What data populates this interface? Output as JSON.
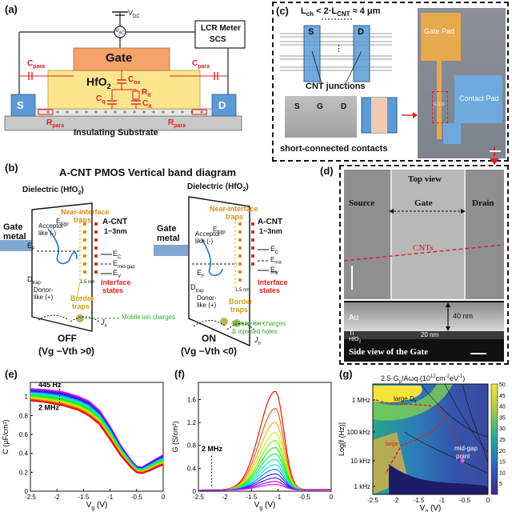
{
  "panel_labels": [
    "(a)",
    "(b)",
    "(c)",
    "(d)",
    "(e)",
    "(f)",
    "(g)"
  ],
  "panel_a": {
    "vdc": "V",
    "vdc_sub": "DC",
    "vac": "V",
    "vac_sub": "AC",
    "lcr_line1": "LCR Meter",
    "lcr_line2": "SCS",
    "gate": "Gate",
    "hfo2": "HfO",
    "hfo2_sub": "2",
    "cpara": "C",
    "cpara_sub": "para",
    "cox": "C",
    "cox_sub": "ox",
    "rit": "R",
    "rit_sub": "it",
    "cit": "C",
    "cit_sub": "it",
    "cq": "C",
    "cq_sub": "q",
    "rpara": "R",
    "rpara_sub": "para",
    "source": "S",
    "drain": "D",
    "substrate": "Insulating Substrate"
  },
  "panel_b": {
    "title": "A-CNT PMOS Vertical band diagram",
    "dielectric": "Dielectric (HfO",
    "dielectric_end": ")",
    "sub2": "2",
    "gate_metal_1": "Gate",
    "gate_metal_2": "metal",
    "acnt": "A-CNT",
    "acnt_size": "1~3nm",
    "near_interface_1": "Near-Interface",
    "near_interface_2": "traps",
    "acceptor_1": "Acceptor-",
    "acceptor_2": "like (-)",
    "donor_1": "Donor-",
    "donor_2": "like (+)",
    "etrap": "E",
    "etrap_sub": "trap",
    "ef": "E",
    "ef_sub": "F",
    "ec": "E",
    "ec_sub": "C",
    "emid": "E",
    "emid_sub": "mid-gap",
    "ev": "E",
    "ev_sub": "V",
    "dtrap": "D",
    "dtrap_sub": "trap",
    "interface_1": "Interface",
    "interface_2": "states",
    "border_1": "Border",
    "border_2": "traps",
    "mobile_off": "Mobile ion charges",
    "mobile_on_1": "Mobile ion charges",
    "mobile_on_2": "& injected holes",
    "jh": "J",
    "jh_sub": "h",
    "off_label": "OFF",
    "off_cond": "(V",
    "off_cond_full": "(Vg −Vth >0)",
    "on_label": "ON",
    "on_cond_full": "(Vg −Vth <0)",
    "size_mark": "1.5 nm"
  },
  "panel_c": {
    "lch_eq": "L",
    "lch_sub": "ch",
    "lch_rest": " < 2·L",
    "lcnt_sub": "CNT",
    "lcnt_rest": " ≈ 4 μm",
    "s": "S",
    "d": "D",
    "g": "G",
    "dots": "⋮",
    "cnt_junctions": "CNT junctions",
    "short_contacts": "short-connected contacts",
    "gate_pad": "Gate Pad",
    "contact_pad": "Contact Pad",
    "mini_letters": "G S D"
  },
  "panel_d": {
    "top_view": "Top view",
    "source": "Source",
    "gate": "Gate",
    "drain": "Drain",
    "cnts": "CNTs",
    "au": "Au",
    "ti": "Ti",
    "hfo2": "HfO",
    "hfo2_sub": "2",
    "thick_40": "40 nm",
    "thick_20": "20 nm",
    "side_view": "Side view of the Gate"
  },
  "chart_data": [
    {
      "type": "line",
      "panel": "(e)",
      "xlabel": "V",
      "xlabel_sub": "g",
      "xlabel_unit": " (V)",
      "ylabel": "C (μF/cm²)",
      "xlim": [
        -2.5,
        0
      ],
      "ylim": [
        0,
        1.15
      ],
      "xticks": [
        "-2.5",
        "-2",
        "-1.5",
        "-1",
        "-0.5",
        "0"
      ],
      "yticks": [
        "0",
        "0.2",
        "0.4",
        "0.6",
        "0.8",
        "1"
      ],
      "annotations": [
        "445 Hz",
        "2 MHz"
      ],
      "series_top": {
        "x": [
          -2.5,
          -2.2,
          -1.9,
          -1.6,
          -1.4,
          -1.2,
          -1.0,
          -0.8,
          -0.6,
          -0.5,
          -0.4,
          -0.25,
          -0.1,
          0
        ],
        "y": [
          1.08,
          1.07,
          1.05,
          1.0,
          0.95,
          0.85,
          0.68,
          0.48,
          0.32,
          0.26,
          0.25,
          0.3,
          0.35,
          0.38
        ]
      },
      "series_bottom": {
        "x": [
          -2.5,
          -2.2,
          -1.9,
          -1.6,
          -1.4,
          -1.2,
          -1.0,
          -0.8,
          -0.6,
          -0.5,
          -0.4,
          -0.25,
          -0.1,
          0
        ],
        "y": [
          0.96,
          0.94,
          0.91,
          0.86,
          0.8,
          0.71,
          0.55,
          0.38,
          0.25,
          0.2,
          0.19,
          0.22,
          0.26,
          0.28
        ]
      },
      "n_series": 14
    },
    {
      "type": "line",
      "panel": "(f)",
      "xlabel": "V",
      "xlabel_sub": "g",
      "xlabel_unit": " (V)",
      "ylabel": "G (S/cm²)",
      "xlim": [
        -2.5,
        0
      ],
      "ylim": [
        0,
        1.9
      ],
      "xticks": [
        "-2.5",
        "-2",
        "-1.5",
        "-1",
        "-0.5",
        "0"
      ],
      "yticks": [
        "0",
        "0.4",
        "0.8",
        "1.2",
        "1.6"
      ],
      "annotations": [
        "2 MHz"
      ],
      "peak_x": -1.05,
      "peak_values": [
        1.72,
        1.42,
        1.18,
        1.0,
        0.86,
        0.74,
        0.63,
        0.53,
        0.44,
        0.36,
        0.28,
        0.21,
        0.15,
        0.1
      ]
    },
    {
      "type": "heatmap",
      "panel": "(g)",
      "title": "2.5·G",
      "title_sub": "p",
      "title_rest": "/Aωq (10",
      "title_sup1": "12",
      "title_mid": "cm",
      "title_sup2": "-2",
      "title_end": "eV",
      "title_sup3": "-1",
      "title_close": ")",
      "xlabel": "V",
      "xlabel_sub": "g",
      "xlabel_unit": " (V)",
      "ylabel": "Log[f (Hz)]",
      "xticks": [
        "-2.5",
        "-2",
        "-1.5",
        "-1",
        "-0.5",
        "0"
      ],
      "yticks": [
        "1 kHz",
        "10 kHz",
        "100 kHz",
        "1 MHz"
      ],
      "colorbar_ticks": [
        "5",
        "10",
        "15",
        "20",
        "25",
        "30",
        "35",
        "40",
        "45",
        "50"
      ],
      "clim": [
        0,
        50
      ],
      "annotations": [
        "large D",
        "large",
        "mid-gap",
        "point"
      ],
      "annotation_sub": "it"
    }
  ],
  "colors": {
    "gate": "#f5a26b",
    "hfo2": "#fde58e",
    "contact": "#5b9bd5",
    "substrate": "#c8c8c8",
    "red": "#e02020",
    "trap_orange": "#e08a1e",
    "yellow_dash": "#f0c419",
    "green": "#33aa33",
    "band_blue": "#1f77d0"
  }
}
